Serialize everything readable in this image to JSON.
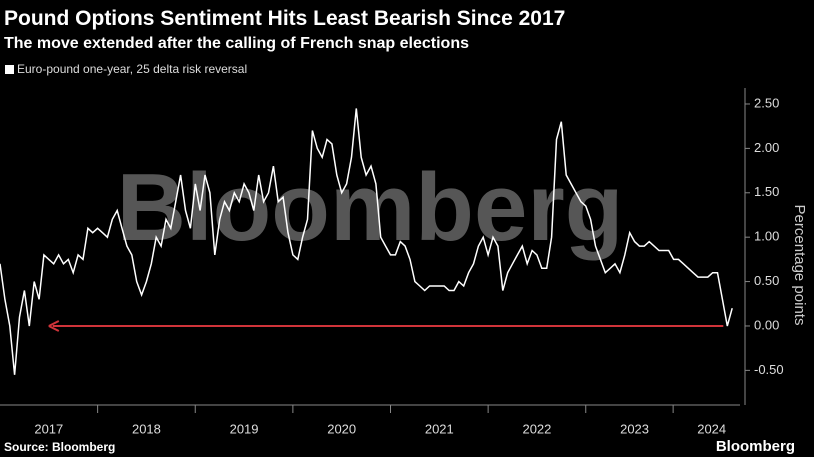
{
  "chart_data": {
    "type": "line",
    "title": "Pound Options Sentiment Hits Least Bearish Since 2017",
    "subtitle": "The move extended after the calling of French snap elections",
    "watermark": "Bloomberg",
    "ylabel": "Percentage points",
    "source": "Source: Bloomberg",
    "brand": "Bloomberg",
    "grid": false,
    "legend": "top-left",
    "annotation_color": "#d0343a",
    "x": [
      2017,
      2017.05,
      2017.1,
      2017.15,
      2017.2,
      2017.25,
      2017.3,
      2017.35,
      2017.4,
      2017.45,
      2017.5,
      2017.55,
      2017.6,
      2017.65,
      2017.7,
      2017.75,
      2017.8,
      2017.85,
      2017.9,
      2017.95,
      2018,
      2018.05,
      2018.1,
      2018.15,
      2018.2,
      2018.25,
      2018.3,
      2018.35,
      2018.4,
      2018.45,
      2018.5,
      2018.55,
      2018.6,
      2018.65,
      2018.7,
      2018.75,
      2018.8,
      2018.85,
      2018.9,
      2018.95,
      2019,
      2019.05,
      2019.1,
      2019.15,
      2019.2,
      2019.25,
      2019.3,
      2019.35,
      2019.4,
      2019.45,
      2019.5,
      2019.55,
      2019.6,
      2019.65,
      2019.7,
      2019.75,
      2019.8,
      2019.85,
      2019.9,
      2019.95,
      2020,
      2020.05,
      2020.1,
      2020.15,
      2020.2,
      2020.25,
      2020.3,
      2020.35,
      2020.4,
      2020.45,
      2020.5,
      2020.55,
      2020.6,
      2020.65,
      2020.7,
      2020.75,
      2020.8,
      2020.85,
      2020.9,
      2020.95,
      2021,
      2021.05,
      2021.1,
      2021.15,
      2021.2,
      2021.25,
      2021.3,
      2021.35,
      2021.4,
      2021.45,
      2021.5,
      2021.55,
      2021.6,
      2021.65,
      2021.7,
      2021.75,
      2021.8,
      2021.85,
      2021.9,
      2021.95,
      2022,
      2022.05,
      2022.1,
      2022.15,
      2022.2,
      2022.25,
      2022.3,
      2022.35,
      2022.4,
      2022.45,
      2022.5,
      2022.55,
      2022.6,
      2022.65,
      2022.7,
      2022.75,
      2022.8,
      2022.85,
      2022.9,
      2022.95,
      2023,
      2023.05,
      2023.1,
      2023.15,
      2023.2,
      2023.25,
      2023.3,
      2023.35,
      2023.4,
      2023.45,
      2023.5,
      2023.55,
      2023.6,
      2023.65,
      2023.7,
      2023.75,
      2023.8,
      2023.85,
      2023.9,
      2023.95,
      2024,
      2024.05,
      2024.1,
      2024.15,
      2024.2,
      2024.25,
      2024.3,
      2024.35,
      2024.4,
      2024.45,
      2024.5
    ],
    "series": [
      {
        "name": "Euro-pound one-year, 25 delta risk reversal",
        "color": "#ffffff",
        "values": [
          0.7,
          0.3,
          0.0,
          -0.55,
          0.1,
          0.4,
          0.0,
          0.5,
          0.3,
          0.8,
          0.75,
          0.7,
          0.8,
          0.7,
          0.75,
          0.6,
          0.8,
          0.75,
          1.1,
          1.05,
          1.1,
          1.05,
          1.0,
          1.2,
          1.3,
          1.1,
          0.9,
          0.8,
          0.5,
          0.35,
          0.5,
          0.7,
          1.0,
          0.9,
          1.2,
          1.1,
          1.4,
          1.7,
          1.3,
          1.1,
          1.6,
          1.3,
          1.7,
          1.5,
          0.8,
          1.2,
          1.4,
          1.3,
          1.5,
          1.4,
          1.6,
          1.5,
          1.3,
          1.7,
          1.4,
          1.5,
          1.8,
          1.4,
          1.45,
          1.05,
          0.8,
          0.75,
          1.0,
          1.2,
          2.2,
          2.0,
          1.9,
          2.1,
          2.05,
          1.7,
          1.5,
          1.6,
          1.9,
          2.45,
          1.9,
          1.7,
          1.8,
          1.6,
          1.0,
          0.9,
          0.8,
          0.8,
          0.95,
          0.9,
          0.75,
          0.5,
          0.45,
          0.4,
          0.45,
          0.45,
          0.45,
          0.45,
          0.4,
          0.4,
          0.5,
          0.45,
          0.6,
          0.7,
          0.9,
          1.0,
          0.8,
          1.0,
          0.9,
          0.4,
          0.6,
          0.7,
          0.8,
          0.9,
          0.7,
          0.85,
          0.8,
          0.65,
          0.65,
          1.0,
          2.1,
          2.3,
          1.7,
          1.6,
          1.5,
          1.4,
          1.35,
          1.2,
          0.9,
          0.75,
          0.6,
          0.65,
          0.7,
          0.6,
          0.8,
          1.05,
          0.95,
          0.9,
          0.9,
          0.95,
          0.9,
          0.85,
          0.85,
          0.85,
          0.75,
          0.75,
          0.7,
          0.65,
          0.6,
          0.55,
          0.55,
          0.55,
          0.6,
          0.6,
          0.3,
          0.0,
          0.2
        ]
      }
    ],
    "xlim": [
      2017,
      2024.58
    ],
    "xticks": [
      {
        "value": 2017.5,
        "label": "2017"
      },
      {
        "value": 2018.5,
        "label": "2018"
      },
      {
        "value": 2019.5,
        "label": "2019"
      },
      {
        "value": 2020.5,
        "label": "2020"
      },
      {
        "value": 2021.5,
        "label": "2021"
      },
      {
        "value": 2022.5,
        "label": "2022"
      },
      {
        "value": 2023.5,
        "label": "2023"
      },
      {
        "value": 2024.29,
        "label": "2024"
      }
    ],
    "ylim": [
      -0.89,
      2.68
    ],
    "yticks": [
      {
        "value": -0.5,
        "label": "-0.50"
      },
      {
        "value": 0,
        "label": "0.00"
      },
      {
        "value": 0.5,
        "label": "0.50"
      },
      {
        "value": 1,
        "label": "1.00"
      },
      {
        "value": 1.5,
        "label": "1.50"
      },
      {
        "value": 2,
        "label": "2.00"
      },
      {
        "value": 2.5,
        "label": "2.50"
      }
    ]
  }
}
